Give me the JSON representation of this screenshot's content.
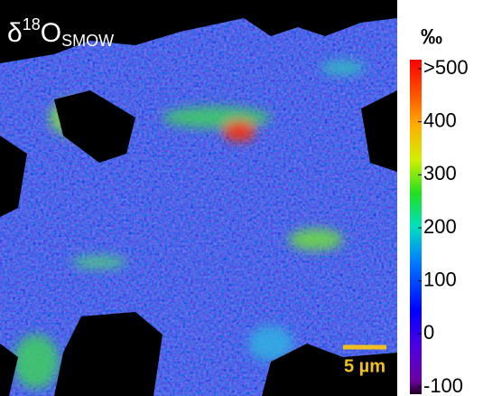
{
  "map": {
    "label": {
      "delta": "δ",
      "superscript": "18",
      "element": "O",
      "subscript": "SMOW"
    },
    "scale_bar": "5 µm"
  },
  "colorbar": {
    "unit": "‰",
    "lim": [
      -100,
      500
    ],
    "ticks": [
      {
        "value": 500,
        "label": ">500"
      },
      400,
      300,
      200,
      100,
      0,
      -100
    ]
  }
}
